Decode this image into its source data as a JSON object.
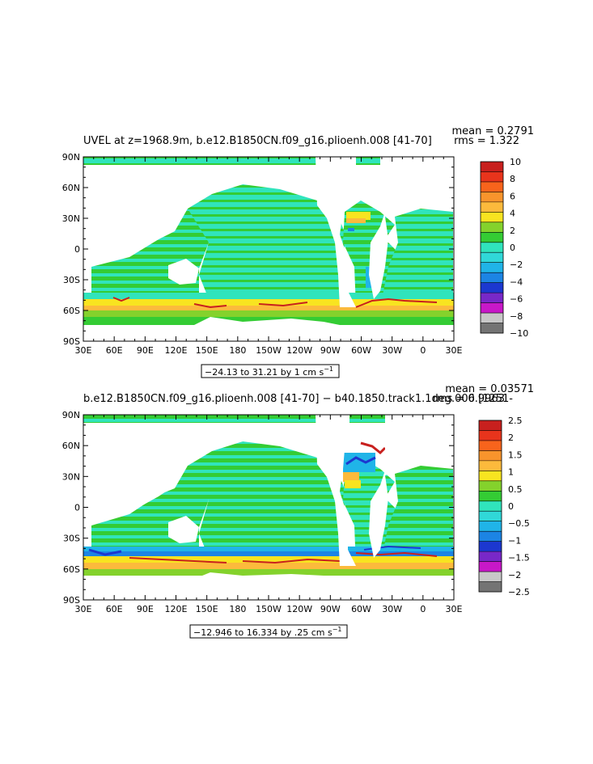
{
  "chart_data": [
    {
      "type": "heatmap",
      "title": "UVEL at z=1968.9m, b.e12.B1850CN.f09_g16.plioenh.008 [41-70]",
      "stats": {
        "mean": "mean = 0.2791",
        "rms": "rms = 1.322"
      },
      "x_ticks": [
        "30E",
        "60E",
        "90E",
        "120E",
        "150E",
        "180",
        "150W",
        "120W",
        "90W",
        "60W",
        "30W",
        "0",
        "30E"
      ],
      "y_ticks": [
        "90N",
        "60N",
        "30N",
        "0",
        "30S",
        "60S",
        "90S"
      ],
      "xlim": [
        30,
        390
      ],
      "ylim": [
        -90,
        90
      ],
      "range_label": "−24.13 to 31.21 by 1 cm s",
      "range_unit_sup": "−1",
      "colorbar": {
        "labels": [
          "10",
          "8",
          "6",
          "4",
          "2",
          "0",
          "−2",
          "−4",
          "−6",
          "−8",
          "−10"
        ],
        "colors": [
          "#c8201e",
          "#e8341c",
          "#f8641c",
          "#f8942c",
          "#fcba3c",
          "#f8e420",
          "#84d22c",
          "#34cc34",
          "#30e4bc",
          "#30d8d8",
          "#20b4e8",
          "#1c84e4",
          "#1c38d0",
          "#7828c8",
          "#c818c8",
          "#c8c8c8",
          "#747474"
        ]
      }
    },
    {
      "type": "heatmap",
      "title": "b.e12.B1850CN.f09_g16.plioenh.008 [41-70] − b40.1850.track1.1deg.006 [1251-",
      "stats": {
        "mean": "mean = 0.03571",
        "rms": "rms = 0.9963"
      },
      "x_ticks": [
        "30E",
        "60E",
        "90E",
        "120E",
        "150E",
        "180",
        "150W",
        "120W",
        "90W",
        "60W",
        "30W",
        "0",
        "30E"
      ],
      "y_ticks": [
        "90N",
        "60N",
        "30N",
        "0",
        "30S",
        "60S",
        "90S"
      ],
      "xlim": [
        30,
        390
      ],
      "ylim": [
        -90,
        90
      ],
      "range_label": "−12.946 to 16.334 by .25 cm s",
      "range_unit_sup": "−1",
      "colorbar": {
        "labels": [
          "2.5",
          "2",
          "1.5",
          "1",
          "0.5",
          "0",
          "−0.5",
          "−1",
          "−1.5",
          "−2",
          "−2.5"
        ],
        "colors": [
          "#c8201e",
          "#e8341c",
          "#f8641c",
          "#f8942c",
          "#fcba3c",
          "#f8e420",
          "#84d22c",
          "#34cc34",
          "#30e4bc",
          "#30d8d8",
          "#20b4e8",
          "#1c84e4",
          "#1c38d0",
          "#7828c8",
          "#c818c8",
          "#c8c8c8",
          "#747474"
        ]
      }
    }
  ]
}
